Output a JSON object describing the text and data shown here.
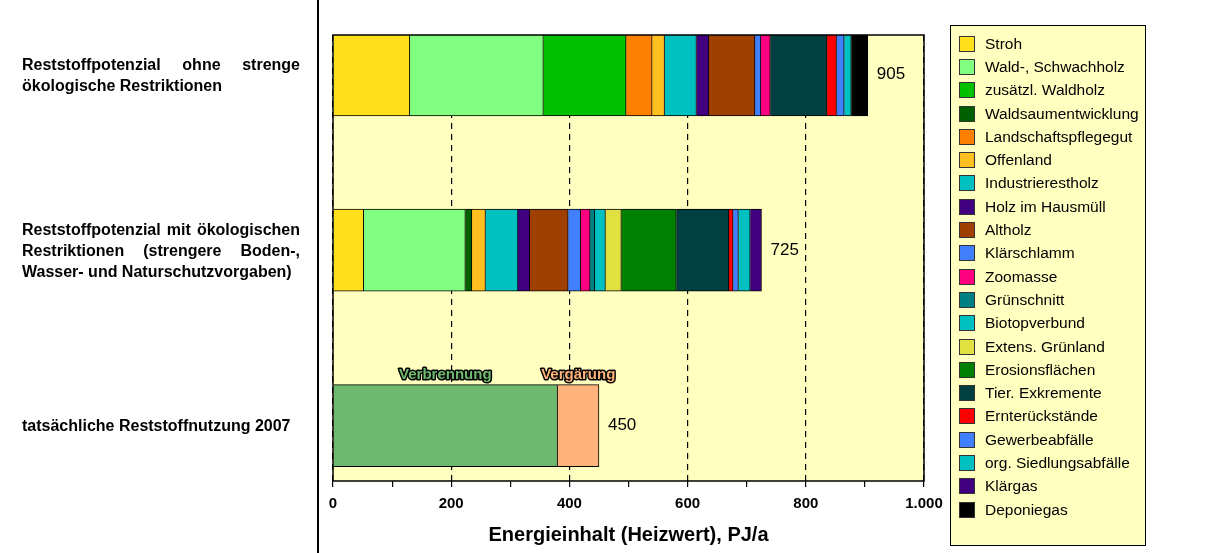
{
  "chart_data": {
    "type": "bar",
    "orientation": "horizontal",
    "stacked": true,
    "xlabel": "Energieinhalt (Heizwert), PJ/a",
    "categories": [
      "Reststoffpotenzial ohne strenge ökologische Restriktionen",
      "Reststoffpotenzial mit ökologischen Restriktionen (strengere Boden-, Wasser- und Naturschutzvorgaben)",
      "tatsächliche Reststoffnutzung 2007"
    ],
    "series": [
      {
        "name": "Stroh",
        "color": "#ffe01a",
        "values": [
          130,
          52,
          null
        ]
      },
      {
        "name": "Wald-, Schwachholz",
        "color": "#80ff80",
        "values": [
          226,
          172,
          null
        ]
      },
      {
        "name": "zusätzl. Waldholz",
        "color": "#00c000",
        "values": [
          140,
          null,
          null
        ]
      },
      {
        "name": "Waldsaumentwicklung",
        "color": "#006000",
        "values": [
          null,
          11,
          null
        ]
      },
      {
        "name": "Landschaftspflegegut",
        "color": "#ff8000",
        "values": [
          44,
          null,
          null
        ]
      },
      {
        "name": "Offenland",
        "color": "#ffc020",
        "values": [
          21,
          23,
          null
        ]
      },
      {
        "name": "Industrierestholz",
        "color": "#00c0c0",
        "values": [
          54,
          55,
          null
        ]
      },
      {
        "name": "Holz im Hausmüll",
        "color": "#400080",
        "values": [
          21,
          20,
          null
        ]
      },
      {
        "name": "Altholz",
        "color": "#a04000",
        "values": [
          78,
          65,
          null
        ]
      },
      {
        "name": "Klärschlamm",
        "color": "#4080ff",
        "values": [
          10,
          21,
          null
        ]
      },
      {
        "name": "Zoomasse",
        "color": "#ff0080",
        "values": [
          16,
          16,
          null
        ]
      },
      {
        "name": "Grünschnitt",
        "color": "#008080",
        "values": [
          null,
          8,
          null
        ]
      },
      {
        "name": "Biotopverbund",
        "color": "#00c0c0",
        "values": [
          null,
          18,
          null
        ]
      },
      {
        "name": "Extens. Grünland",
        "color": "#e0e040",
        "values": [
          null,
          27,
          null
        ]
      },
      {
        "name": "Erosionsflächen",
        "color": "#008000",
        "values": [
          null,
          93,
          null
        ]
      },
      {
        "name": "Tier. Exkremente",
        "color": "#004040",
        "values": [
          96,
          89,
          null
        ]
      },
      {
        "name": "Ernterückstände",
        "color": "#ff0000",
        "values": [
          16,
          7,
          null
        ]
      },
      {
        "name": "Gewerbeabfälle",
        "color": "#4080ff",
        "values": [
          13,
          9,
          null
        ]
      },
      {
        "name": "org. Siedlungsabfälle",
        "color": "#00c0c0",
        "values": [
          12,
          20,
          null
        ]
      },
      {
        "name": "Klärgas",
        "color": "#400080",
        "values": [
          null,
          19,
          null
        ]
      },
      {
        "name": "Deponiegas",
        "color": "#000000",
        "values": [
          28,
          null,
          null
        ]
      },
      {
        "name": "Verbrennung",
        "color": "#6fb96f",
        "values": [
          null,
          null,
          380
        ]
      },
      {
        "name": "Vergärung",
        "color": "#ffb27a",
        "values": [
          null,
          null,
          70
        ]
      }
    ],
    "totals": [
      "905",
      "725",
      "450"
    ],
    "xlim": [
      0,
      1000
    ],
    "xticks": [
      0,
      {
        "value": 100,
        "label": null
      },
      200,
      {
        "value": 300,
        "label": null
      },
      400,
      {
        "value": 500,
        "label": null
      },
      600,
      {
        "value": 700,
        "label": null
      },
      800,
      {
        "value": 900,
        "label": null
      },
      {
        "value": 1000,
        "label": "1.000"
      }
    ],
    "grid": "x",
    "legend": "right"
  }
}
